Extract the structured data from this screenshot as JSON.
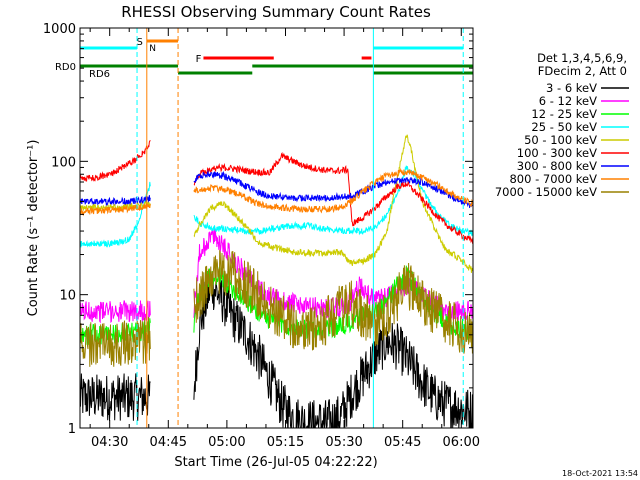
{
  "chart_data": {
    "type": "line",
    "title": "RHESSI Observing Summary Count Rates",
    "xlabel": "Start Time (26-Jul-05 04:22:22)",
    "ylabel": "Count Rate (s⁻¹ detector⁻¹)",
    "y_scale": "log",
    "ylim": [
      1,
      1000
    ],
    "xlim_minutes": [
      262.4,
      363
    ],
    "grid": false,
    "legend_position": "right",
    "x_ticks": [
      {
        "t": 270,
        "label": "04:30"
      },
      {
        "t": 285,
        "label": "04:45"
      },
      {
        "t": 300,
        "label": "05:00"
      },
      {
        "t": 315,
        "label": "05:15"
      },
      {
        "t": 330,
        "label": "05:30"
      },
      {
        "t": 345,
        "label": "05:45"
      },
      {
        "t": 360,
        "label": "06:00"
      }
    ],
    "y_ticks": [
      {
        "v": 1,
        "label": "1"
      },
      {
        "v": 10,
        "label": "10"
      },
      {
        "v": 100,
        "label": "100"
      },
      {
        "v": 1000,
        "label": "1000"
      }
    ],
    "legend_header": [
      "Det 1,3,4,5,6,9,",
      "FDecim 2, Att 0"
    ],
    "gaps_minutes": [
      [
        280.5,
        291.5
      ]
    ],
    "series": [
      {
        "name": "3 - 6 keV",
        "color": "#000000",
        "points": [
          [
            262.4,
            1.7
          ],
          [
            275,
            1.7
          ],
          [
            277,
            1.7
          ],
          [
            279.5,
            1.7
          ],
          [
            291.5,
            1.8
          ],
          [
            293,
            6
          ],
          [
            296,
            12
          ],
          [
            299,
            9
          ],
          [
            302,
            6.5
          ],
          [
            305,
            5
          ],
          [
            308,
            3.5
          ],
          [
            311,
            2.3
          ],
          [
            314,
            1.5
          ],
          [
            317,
            1.2
          ],
          [
            320,
            1.1
          ],
          [
            323,
            1.1
          ],
          [
            326,
            1.1
          ],
          [
            329,
            1.2
          ],
          [
            332,
            1.8
          ],
          [
            335,
            2.5
          ],
          [
            338,
            3.5
          ],
          [
            341,
            4.5
          ],
          [
            344,
            4
          ],
          [
            347,
            3
          ],
          [
            350,
            2.2
          ],
          [
            353,
            1.7
          ],
          [
            356,
            1.5
          ],
          [
            360,
            1.4
          ],
          [
            363,
            1.3
          ]
        ]
      },
      {
        "name": "6 - 12 keV",
        "color": "#ff00ff",
        "points": [
          [
            262.4,
            7.5
          ],
          [
            270,
            7.5
          ],
          [
            277,
            7.5
          ],
          [
            279.5,
            7.6
          ],
          [
            291.5,
            7.5
          ],
          [
            293,
            20
          ],
          [
            296,
            28
          ],
          [
            299,
            24
          ],
          [
            302,
            18
          ],
          [
            305,
            14
          ],
          [
            308,
            11
          ],
          [
            311,
            9.5
          ],
          [
            314,
            9
          ],
          [
            317,
            8.5
          ],
          [
            320,
            8
          ],
          [
            323,
            8
          ],
          [
            326,
            8
          ],
          [
            329,
            8
          ],
          [
            332,
            9
          ],
          [
            334,
            12
          ],
          [
            336,
            10
          ],
          [
            338,
            9
          ],
          [
            341,
            9.5
          ],
          [
            344,
            11
          ],
          [
            347,
            12
          ],
          [
            350,
            10
          ],
          [
            353,
            8.5
          ],
          [
            356,
            7.5
          ],
          [
            360,
            7.5
          ],
          [
            363,
            7.5
          ]
        ]
      },
      {
        "name": "12 - 25 keV",
        "color": "#00ff00",
        "points": [
          [
            262.4,
            5
          ],
          [
            270,
            5
          ],
          [
            277,
            5.2
          ],
          [
            279.5,
            5.5
          ],
          [
            291.5,
            6
          ],
          [
            293,
            10
          ],
          [
            296,
            14
          ],
          [
            299,
            13
          ],
          [
            302,
            11
          ],
          [
            305,
            9
          ],
          [
            308,
            7.5
          ],
          [
            311,
            6.5
          ],
          [
            314,
            6
          ],
          [
            317,
            5.8
          ],
          [
            320,
            5.6
          ],
          [
            323,
            5.5
          ],
          [
            326,
            5.6
          ],
          [
            329,
            5.8
          ],
          [
            332,
            6.2
          ],
          [
            335,
            7
          ],
          [
            338,
            7.5
          ],
          [
            341,
            9
          ],
          [
            344,
            12
          ],
          [
            346,
            14
          ],
          [
            348,
            12
          ],
          [
            351,
            9
          ],
          [
            354,
            7
          ],
          [
            357,
            6
          ],
          [
            360,
            5.5
          ],
          [
            363,
            5.3
          ]
        ]
      },
      {
        "name": "25 - 50 keV",
        "color": "#00ffff",
        "points": [
          [
            262.4,
            24
          ],
          [
            268,
            24
          ],
          [
            272,
            24.5
          ],
          [
            275,
            26
          ],
          [
            277,
            34
          ],
          [
            279,
            50
          ],
          [
            280.5,
            70
          ],
          [
            291.5,
            40
          ],
          [
            293,
            34
          ],
          [
            296,
            32
          ],
          [
            299,
            31
          ],
          [
            302,
            30.5
          ],
          [
            305,
            30
          ],
          [
            308,
            30
          ],
          [
            311,
            31
          ],
          [
            314,
            32
          ],
          [
            317,
            33
          ],
          [
            320,
            33
          ],
          [
            323,
            32
          ],
          [
            326,
            31
          ],
          [
            329,
            30.5
          ],
          [
            332,
            30
          ],
          [
            335,
            30
          ],
          [
            338,
            32
          ],
          [
            341,
            40
          ],
          [
            344,
            60
          ],
          [
            346,
            90
          ],
          [
            348,
            80
          ],
          [
            351,
            55
          ],
          [
            354,
            40
          ],
          [
            357,
            33
          ],
          [
            360,
            30
          ],
          [
            363,
            29
          ]
        ]
      },
      {
        "name": "50 - 100 keV",
        "color": "#cccc00",
        "points": [
          [
            262.4,
            45
          ],
          [
            270,
            45
          ],
          [
            275,
            46
          ],
          [
            279.5,
            48
          ],
          [
            291.5,
            28
          ],
          [
            293,
            33
          ],
          [
            296,
            45
          ],
          [
            299,
            48
          ],
          [
            302,
            40
          ],
          [
            305,
            32
          ],
          [
            308,
            25
          ],
          [
            311,
            23
          ],
          [
            314,
            22
          ],
          [
            317,
            21
          ],
          [
            320,
            20.5
          ],
          [
            323,
            20.5
          ],
          [
            326,
            20.5
          ],
          [
            329,
            21
          ],
          [
            332,
            17
          ],
          [
            335,
            18
          ],
          [
            338,
            20
          ],
          [
            341,
            30
          ],
          [
            343,
            60
          ],
          [
            345,
            120
          ],
          [
            346,
            160
          ],
          [
            347.5,
            110
          ],
          [
            350,
            50
          ],
          [
            353,
            32
          ],
          [
            356,
            22
          ],
          [
            360,
            18
          ],
          [
            363,
            15
          ]
        ]
      },
      {
        "name": "100 - 300 keV",
        "color": "#ff0000",
        "points": [
          [
            262.4,
            75
          ],
          [
            266,
            75
          ],
          [
            270,
            80
          ],
          [
            273,
            90
          ],
          [
            276,
            100
          ],
          [
            279,
            120
          ],
          [
            280.5,
            145
          ],
          [
            291.5,
            68
          ],
          [
            293,
            80
          ],
          [
            296,
            88
          ],
          [
            299,
            90
          ],
          [
            302,
            88
          ],
          [
            305,
            85
          ],
          [
            308,
            83
          ],
          [
            311,
            82
          ],
          [
            314,
            110
          ],
          [
            317,
            100
          ],
          [
            320,
            92
          ],
          [
            323,
            88
          ],
          [
            326,
            85
          ],
          [
            329,
            85
          ],
          [
            331,
            87
          ],
          [
            332,
            34
          ],
          [
            335,
            38
          ],
          [
            338,
            45
          ],
          [
            341,
            55
          ],
          [
            344,
            65
          ],
          [
            346,
            68
          ],
          [
            348,
            60
          ],
          [
            351,
            48
          ],
          [
            354,
            38
          ],
          [
            357,
            32
          ],
          [
            360,
            28
          ],
          [
            363,
            25
          ]
        ]
      },
      {
        "name": "300 - 800 keV",
        "color": "#0000ff",
        "points": [
          [
            262.4,
            50
          ],
          [
            270,
            50
          ],
          [
            275,
            50
          ],
          [
            279.5,
            52
          ],
          [
            291.5,
            70
          ],
          [
            293,
            78
          ],
          [
            296,
            80
          ],
          [
            299,
            78
          ],
          [
            302,
            72
          ],
          [
            305,
            65
          ],
          [
            308,
            58
          ],
          [
            311,
            55
          ],
          [
            314,
            54
          ],
          [
            317,
            53
          ],
          [
            320,
            53
          ],
          [
            323,
            53
          ],
          [
            326,
            53
          ],
          [
            329,
            54
          ],
          [
            332,
            55
          ],
          [
            335,
            60
          ],
          [
            338,
            65
          ],
          [
            341,
            70
          ],
          [
            344,
            72
          ],
          [
            346,
            73
          ],
          [
            348,
            72
          ],
          [
            351,
            68
          ],
          [
            354,
            62
          ],
          [
            357,
            55
          ],
          [
            360,
            50
          ],
          [
            363,
            46
          ]
        ]
      },
      {
        "name": "800 - 7000 keV",
        "color": "#ff8000",
        "points": [
          [
            262.4,
            42
          ],
          [
            270,
            43
          ],
          [
            275,
            44
          ],
          [
            279.5,
            46
          ],
          [
            291.5,
            60
          ],
          [
            293,
            62
          ],
          [
            296,
            63
          ],
          [
            299,
            62
          ],
          [
            302,
            58
          ],
          [
            305,
            53
          ],
          [
            308,
            48
          ],
          [
            311,
            46
          ],
          [
            314,
            45
          ],
          [
            317,
            44
          ],
          [
            320,
            44
          ],
          [
            323,
            44
          ],
          [
            326,
            44
          ],
          [
            329,
            45
          ],
          [
            332,
            50
          ],
          [
            335,
            60
          ],
          [
            338,
            70
          ],
          [
            341,
            78
          ],
          [
            344,
            82
          ],
          [
            346,
            83
          ],
          [
            348,
            80
          ],
          [
            351,
            74
          ],
          [
            354,
            66
          ],
          [
            357,
            58
          ],
          [
            360,
            52
          ],
          [
            363,
            48
          ]
        ]
      },
      {
        "name": "7000 - 15000 keV",
        "color": "#998000",
        "points": [
          [
            262.4,
            4.2
          ],
          [
            270,
            4.2
          ],
          [
            275,
            4.3
          ],
          [
            279.5,
            4.5
          ],
          [
            291.5,
            8
          ],
          [
            293,
            10
          ],
          [
            296,
            14
          ],
          [
            299,
            15
          ],
          [
            302,
            14
          ],
          [
            305,
            12
          ],
          [
            308,
            10
          ],
          [
            311,
            8
          ],
          [
            314,
            7
          ],
          [
            317,
            6
          ],
          [
            320,
            5.5
          ],
          [
            323,
            5.5
          ],
          [
            326,
            6.5
          ],
          [
            329,
            8
          ],
          [
            332,
            8.5
          ],
          [
            335,
            7
          ],
          [
            338,
            6
          ],
          [
            341,
            7
          ],
          [
            344,
            10
          ],
          [
            346,
            12
          ],
          [
            348,
            10.5
          ],
          [
            351,
            8.5
          ],
          [
            354,
            7
          ],
          [
            357,
            6
          ],
          [
            360,
            5.5
          ],
          [
            363,
            5.2
          ]
        ]
      }
    ],
    "vertical_markers": [
      {
        "t": 262.4,
        "color": "#00ffff",
        "style": "solid"
      },
      {
        "t": 277,
        "color": "#00ffff",
        "style": "dashed"
      },
      {
        "t": 279.5,
        "color": "#ff8000",
        "style": "solid"
      },
      {
        "t": 287.5,
        "color": "#ff8000",
        "style": "dashed"
      },
      {
        "t": 337.5,
        "color": "#00ffff",
        "style": "solid"
      },
      {
        "t": 360.5,
        "color": "#00ffff",
        "style": "dashed"
      }
    ],
    "flag_bars": [
      {
        "label": "S",
        "color": "#ff8000",
        "row": 1,
        "segments": [
          [
            279.5,
            287.5
          ]
        ]
      },
      {
        "label": "",
        "color": "#00ffff",
        "row": 2,
        "segments": [
          [
            262.4,
            277
          ],
          [
            337.5,
            360.5
          ]
        ]
      },
      {
        "label": "F",
        "color": "#ff0000",
        "row": 3,
        "segments": [
          [
            294,
            312
          ],
          [
            334.5,
            337
          ]
        ]
      },
      {
        "label": "RD0",
        "color": "#008000",
        "row": 4,
        "segments": [
          [
            262.4,
            287.5
          ],
          [
            306.5,
            363
          ]
        ]
      },
      {
        "label": "RD6",
        "color": "#008000",
        "row": 5,
        "segments": [
          [
            287.5,
            306.5
          ],
          [
            337.5,
            363
          ]
        ]
      }
    ],
    "flag_side_label": "N",
    "timestamp": "18-Oct-2021 13:54"
  }
}
